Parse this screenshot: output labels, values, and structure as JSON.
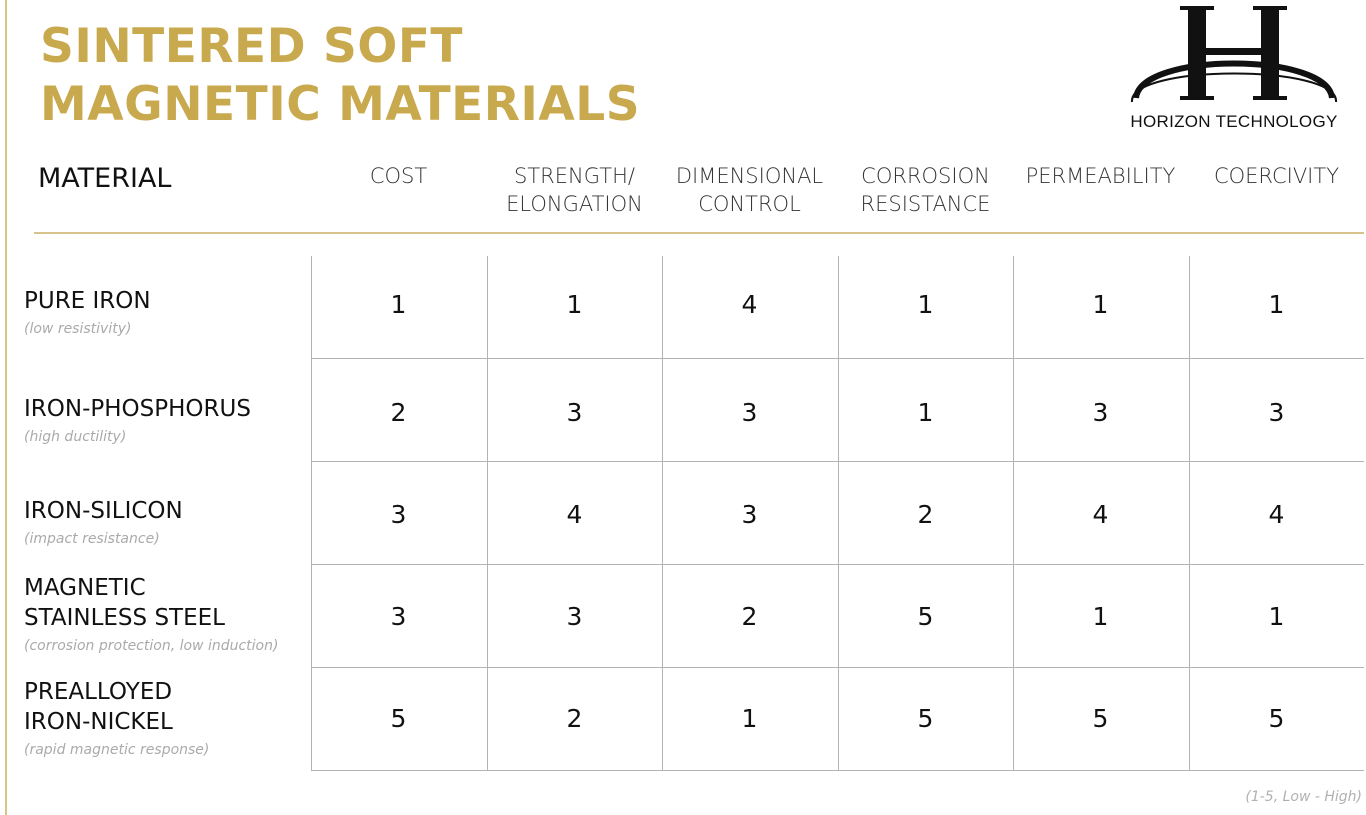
{
  "title": {
    "line1": "SINTERED SOFT",
    "line2": "MAGNETIC MATERIALS"
  },
  "brand": {
    "name": "HORIZON TECHNOLOGY",
    "logo_icon": "horizon-h-ellipse-logo",
    "accent_color": "#c9a94e"
  },
  "table": {
    "material_header": "MATERIAL",
    "columns": [
      "COST",
      "STRENGTH/\nELONGATION",
      "DIMENSIONAL\nCONTROL",
      "CORROSION\nRESISTANCE",
      "PERMEABILITY",
      "COERCIVITY"
    ],
    "rows": [
      {
        "name": "PURE IRON",
        "note": "(low resistivity)",
        "values": [
          "1",
          "1",
          "4",
          "1",
          "1",
          "1"
        ]
      },
      {
        "name": "IRON-PHOSPHORUS",
        "note": "(high ductility)",
        "values": [
          "2",
          "3",
          "3",
          "1",
          "3",
          "3"
        ]
      },
      {
        "name": "IRON-SILICON",
        "note": "(impact resistance)",
        "values": [
          "3",
          "4",
          "3",
          "2",
          "4",
          "4"
        ]
      },
      {
        "name": "MAGNETIC\nSTAINLESS STEEL",
        "note": "(corrosion protection, low induction)",
        "values": [
          "3",
          "3",
          "2",
          "5",
          "1",
          "1"
        ]
      },
      {
        "name": "PREALLOYED\nIRON-NICKEL",
        "note": "(rapid magnetic response)",
        "values": [
          "5",
          "2",
          "1",
          "5",
          "5",
          "5"
        ]
      }
    ]
  },
  "legend": "(1-5, Low - High)"
}
